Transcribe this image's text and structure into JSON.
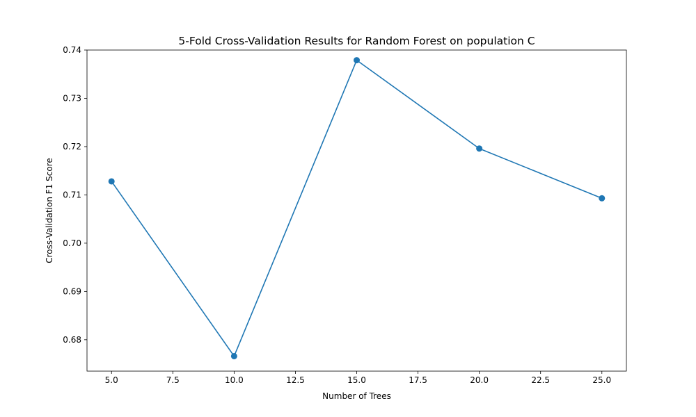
{
  "chart_data": {
    "type": "line",
    "title": "5-Fold Cross-Validation Results for Random Forest on population C",
    "xlabel": "Number of Trees",
    "ylabel": "Cross-Validation F1 Score",
    "x": [
      5,
      10,
      15,
      20,
      25
    ],
    "series": [
      {
        "values": [
          0.7128,
          0.6766,
          0.7379,
          0.7196,
          0.7093
        ],
        "color": "#1f77b4",
        "marker": "circle"
      }
    ],
    "xlim": [
      4,
      26
    ],
    "ylim": [
      0.6735,
      0.74
    ],
    "xticks": [
      5.0,
      7.5,
      10.0,
      12.5,
      15.0,
      17.5,
      20.0,
      22.5,
      25.0
    ],
    "xtick_labels": [
      "5.0",
      "7.5",
      "10.0",
      "12.5",
      "15.0",
      "17.5",
      "20.0",
      "22.5",
      "25.0"
    ],
    "yticks": [
      0.68,
      0.69,
      0.7,
      0.71,
      0.72,
      0.73,
      0.74
    ],
    "ytick_labels": [
      "0.68",
      "0.69",
      "0.70",
      "0.71",
      "0.72",
      "0.73",
      "0.74"
    ],
    "grid": false,
    "legend": "none"
  }
}
